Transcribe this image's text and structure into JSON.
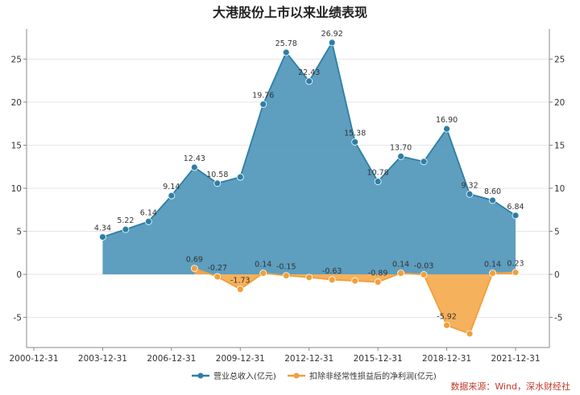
{
  "title": "大港股份上市以来业绩表现",
  "source_note": "数据来源：Wind，深水财经社",
  "colors": {
    "revenue_line": "#2e7ea6",
    "revenue_fill": "#4d94b8",
    "profit_line": "#f0a03c",
    "profit_fill": "#f5a84a",
    "axis": "#888888",
    "grid": "#e6e6e6"
  },
  "chart_data": {
    "type": "area",
    "title": "大港股份上市以来业绩表现",
    "x_ticks": [
      "2000-12-31",
      "2003-12-31",
      "2006-12-31",
      "2009-12-31",
      "2012-12-31",
      "2015-12-31",
      "2018-12-31",
      "2021-12-31"
    ],
    "y_ticks": [
      -5,
      0,
      5,
      10,
      15,
      20,
      25
    ],
    "ylim": [
      -8.5,
      28.5
    ],
    "grid": true,
    "legend_position": "bottom",
    "series": [
      {
        "name": "营业总收入(亿元)",
        "color": "#2e7ea6",
        "points": [
          {
            "date": "2003-12-31",
            "value": 4.34,
            "label": "4.34"
          },
          {
            "date": "2004-12-31",
            "value": 5.22,
            "label": "5.22"
          },
          {
            "date": "2005-12-31",
            "value": 6.14,
            "label": "6.14"
          },
          {
            "date": "2006-12-31",
            "value": 9.14,
            "label": "9.14"
          },
          {
            "date": "2007-12-31",
            "value": 12.43,
            "label": "12.43"
          },
          {
            "date": "2008-12-31",
            "value": 10.58,
            "label": "10.58"
          },
          {
            "date": "2009-12-31",
            "value": 11.3,
            "label": ""
          },
          {
            "date": "2010-12-31",
            "value": 19.76,
            "label": "19.76"
          },
          {
            "date": "2011-12-31",
            "value": 25.78,
            "label": "25.78"
          },
          {
            "date": "2012-12-31",
            "value": 22.43,
            "label": "22.43"
          },
          {
            "date": "2013-12-31",
            "value": 26.92,
            "label": "26.92"
          },
          {
            "date": "2014-12-31",
            "value": 15.38,
            "label": "15.38"
          },
          {
            "date": "2015-12-31",
            "value": 10.78,
            "label": "10.78"
          },
          {
            "date": "2016-12-31",
            "value": 13.7,
            "label": "13.70"
          },
          {
            "date": "2017-12-31",
            "value": 13.1,
            "label": ""
          },
          {
            "date": "2018-12-31",
            "value": 16.9,
            "label": "16.90"
          },
          {
            "date": "2019-12-31",
            "value": 9.32,
            "label": "9.32"
          },
          {
            "date": "2020-12-31",
            "value": 8.6,
            "label": "8.60"
          },
          {
            "date": "2021-12-31",
            "value": 6.84,
            "label": "6.84"
          }
        ]
      },
      {
        "name": "扣除非经常性损益后的净利润(亿元)",
        "color": "#f0a03c",
        "points": [
          {
            "date": "2007-12-31",
            "value": 0.69,
            "label": "0.69"
          },
          {
            "date": "2008-12-31",
            "value": -0.27,
            "label": "-0.27"
          },
          {
            "date": "2009-12-31",
            "value": -1.73,
            "label": "-1.73"
          },
          {
            "date": "2010-12-31",
            "value": 0.14,
            "label": "0.14"
          },
          {
            "date": "2011-12-31",
            "value": -0.15,
            "label": "-0.15"
          },
          {
            "date": "2012-12-31",
            "value": -0.35,
            "label": ""
          },
          {
            "date": "2013-12-31",
            "value": -0.63,
            "label": "-0.63"
          },
          {
            "date": "2014-12-31",
            "value": -0.75,
            "label": ""
          },
          {
            "date": "2015-12-31",
            "value": -0.89,
            "label": "-0.89"
          },
          {
            "date": "2016-12-31",
            "value": 0.14,
            "label": "0.14"
          },
          {
            "date": "2017-12-31",
            "value": -0.03,
            "label": "-0.03"
          },
          {
            "date": "2018-12-31",
            "value": -5.92,
            "label": "-5.92"
          },
          {
            "date": "2019-12-31",
            "value": -6.9,
            "label": ""
          },
          {
            "date": "2020-12-31",
            "value": 0.14,
            "label": "0.14"
          },
          {
            "date": "2021-12-31",
            "value": 0.23,
            "label": "0.23"
          }
        ]
      }
    ]
  }
}
